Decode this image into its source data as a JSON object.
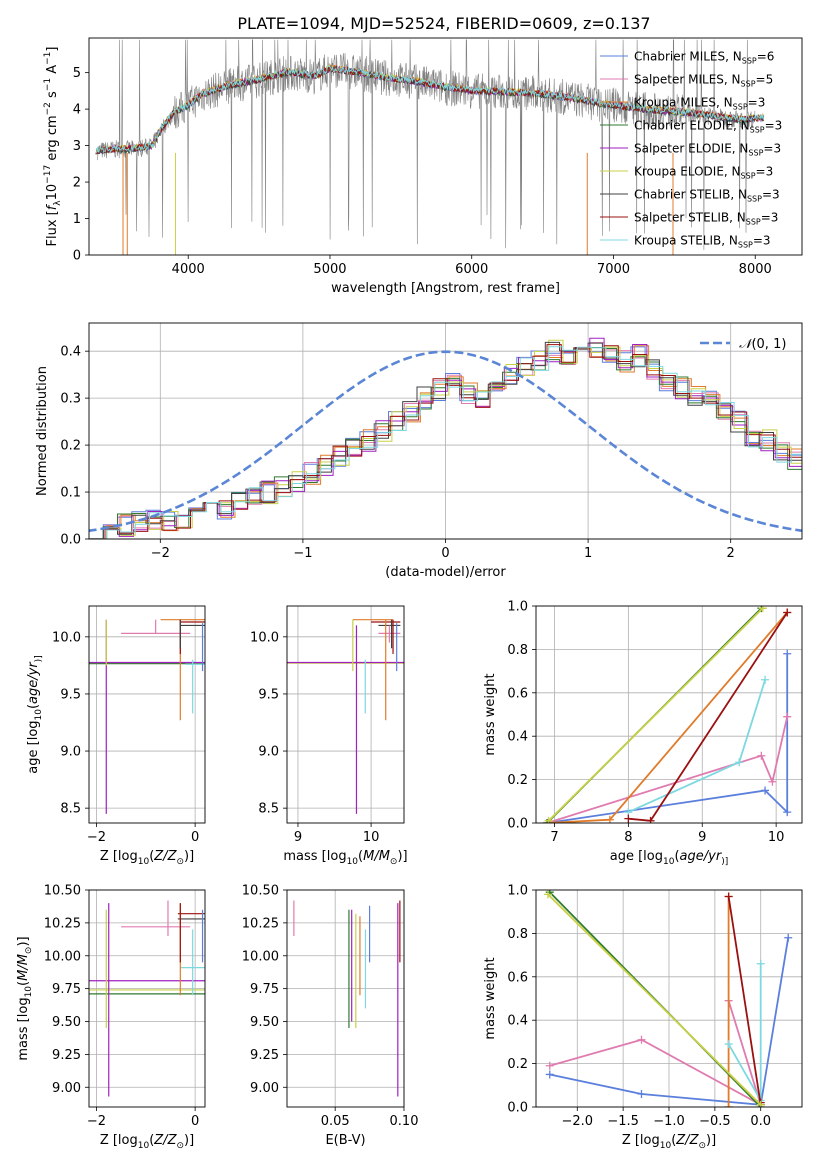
{
  "figure": {
    "title": "PLATE=1094, MJD=52524, FIBERID=0609, z=0.137"
  },
  "colors": {
    "chabrier_miles": "#5b7fdc",
    "salpeter_miles": "#e07bb0",
    "kroupa_miles": "#e07b2a",
    "chabrier_elodie": "#2f7a2f",
    "salpeter_elodie": "#a020c0",
    "kroupa_elodie": "#c8d048",
    "chabrier_stelib": "#404040",
    "salpeter_stelib": "#9b1010",
    "kroupa_stelib": "#7ed8e0",
    "data_gray": "#7f7f7f",
    "gauss": "#5b86d6",
    "grid": "#b0b0b0"
  },
  "chart_data": [
    {
      "id": "spectrum",
      "type": "line",
      "title": "",
      "xlabel": "wavelength [Angstrom, rest frame]",
      "ylabel_parts": [
        "Flux [",
        "f",
        "λ",
        "10",
        "−17",
        " erg cm",
        "−2",
        " s",
        "−1",
        " A",
        "−1",
        "]"
      ],
      "xlim": [
        3300,
        8330
      ],
      "ylim": [
        0,
        5.95
      ],
      "xticks": [
        4000,
        5000,
        6000,
        7000,
        8000
      ],
      "yticks": [
        0,
        1,
        2,
        3,
        4,
        5
      ],
      "grid": false,
      "legend_position": "upper-right",
      "legend": [
        {
          "prefix": "Chabrier MILES, N",
          "sub": "SSP",
          "suffix": "=6",
          "color_key": "chabrier_miles"
        },
        {
          "prefix": "Salpeter MILES, N",
          "sub": "SSP",
          "suffix": "=5",
          "color_key": "salpeter_miles"
        },
        {
          "prefix": "Kroupa MILES, N",
          "sub": "SSP",
          "suffix": "=3",
          "color_key": "kroupa_miles"
        },
        {
          "prefix": "Chabrier ELODIE, N",
          "sub": "SSP",
          "suffix": "=3",
          "color_key": "chabrier_elodie"
        },
        {
          "prefix": "Salpeter ELODIE, N",
          "sub": "SSP",
          "suffix": "=3",
          "color_key": "salpeter_elodie"
        },
        {
          "prefix": "Kroupa ELODIE, N",
          "sub": "SSP",
          "suffix": "=3",
          "color_key": "kroupa_elodie"
        },
        {
          "prefix": "Chabrier STELIB, N",
          "sub": "SSP",
          "suffix": "=3",
          "color_key": "chabrier_stelib"
        },
        {
          "prefix": "Salpeter STELIB, N",
          "sub": "SSP",
          "suffix": "=3",
          "color_key": "salpeter_stelib"
        },
        {
          "prefix": "Kroupa STELIB, N",
          "sub": "SSP",
          "suffix": "=3",
          "color_key": "kroupa_stelib"
        }
      ],
      "model_continuum": {
        "x": [
          3350,
          3500,
          3600,
          3700,
          3750,
          3800,
          3900,
          4000,
          4100,
          4300,
          4500,
          4700,
          4900,
          5000,
          5200,
          5400,
          5600,
          5800,
          6000,
          6300,
          6500,
          6700,
          6900,
          7100,
          7300,
          7500,
          7700,
          7900,
          8050
        ],
        "y": [
          2.85,
          2.9,
          2.9,
          2.95,
          3.0,
          3.4,
          3.9,
          4.1,
          4.4,
          4.65,
          4.8,
          5.0,
          4.9,
          5.1,
          5.0,
          4.85,
          4.75,
          4.6,
          4.5,
          4.45,
          4.4,
          4.3,
          4.15,
          4.05,
          3.95,
          3.9,
          3.8,
          3.7,
          3.75
        ]
      }
    },
    {
      "id": "residuals",
      "type": "step",
      "title": "",
      "xlabel": "(data-model)/error",
      "ylabel": "Normed distribution",
      "xlim": [
        -2.5,
        2.5
      ],
      "ylim": [
        0,
        0.46
      ],
      "xticks": [
        -2,
        -1,
        0,
        1,
        2
      ],
      "xtick_labels": [
        "−2",
        "−1",
        "0",
        "1",
        "2"
      ],
      "yticks": [
        0.0,
        0.1,
        0.2,
        0.3,
        0.4
      ],
      "ytick_labels": [
        "0.0",
        "0.1",
        "0.2",
        "0.3",
        "0.4"
      ],
      "grid": true,
      "legend_position": "upper-right",
      "gauss_label_parts": [
        "𝒩",
        "(0, 1)"
      ],
      "bin_edges_start": -2.5,
      "bin_width": 0.1,
      "base_hist": [
        0.025,
        0.02,
        0.03,
        0.035,
        0.04,
        0.04,
        0.045,
        0.05,
        0.06,
        0.06,
        0.075,
        0.085,
        0.1,
        0.11,
        0.125,
        0.14,
        0.16,
        0.175,
        0.19,
        0.21,
        0.23,
        0.25,
        0.27,
        0.3,
        0.32,
        0.335,
        0.31,
        0.3,
        0.32,
        0.35,
        0.37,
        0.38,
        0.4,
        0.39,
        0.4,
        0.41,
        0.39,
        0.38,
        0.39,
        0.36,
        0.33,
        0.32,
        0.3,
        0.3,
        0.28,
        0.25,
        0.22,
        0.21,
        0.18,
        0.17,
        0.16,
        0.15,
        0.14,
        0.12,
        0.12,
        0.1,
        0.09,
        0.07,
        0.055,
        0.05,
        0.05,
        0.045,
        0.04,
        0.045,
        0.05,
        0.045,
        0.04,
        0.045,
        0.04,
        0.04
      ],
      "gauss_mean": 0,
      "gauss_sigma": 1
    },
    {
      "id": "age_vs_z",
      "type": "errorbar",
      "xlabel_parts": [
        "Z [log",
        "10",
        "(",
        "Z/Z",
        "⊙",
        ")]"
      ],
      "ylabel_parts": [
        "age  [log",
        "10",
        "(",
        "age/yr",
        ")]"
      ],
      "xlim": [
        -2.15,
        0.2
      ],
      "ylim": [
        8.37,
        10.27
      ],
      "xticks": [
        -2,
        0
      ],
      "xtick_labels": [
        "−2",
        "0"
      ],
      "yticks": [
        8.5,
        9.0,
        9.5,
        10.0
      ],
      "ytick_labels": [
        "8.5",
        "9.0",
        "9.5",
        "10.0"
      ],
      "grid": true,
      "vlines": [
        {
          "x": -1.8,
          "y1": 8.45,
          "y2": 10.15,
          "color_key": "salpeter_elodie"
        },
        {
          "x": -1.8,
          "y1": 9.75,
          "y2": 10.15,
          "color_key": "kroupa_elodie"
        },
        {
          "x": -0.3,
          "y1": 9.27,
          "y2": 10.15,
          "color_key": "kroupa_miles"
        },
        {
          "x": -0.3,
          "y1": 9.85,
          "y2": 10.15,
          "color_key": "salpeter_stelib"
        },
        {
          "x": -0.3,
          "y1": 9.9,
          "y2": 10.15,
          "color_key": "chabrier_stelib"
        },
        {
          "x": -0.05,
          "y1": 9.33,
          "y2": 9.8,
          "color_key": "kroupa_stelib"
        },
        {
          "x": 0.15,
          "y1": 9.7,
          "y2": 10.12,
          "color_key": "chabrier_miles"
        },
        {
          "x": -0.8,
          "y1": 10.03,
          "y2": 10.15,
          "color_key": "salpeter_miles"
        }
      ],
      "hlines": [
        {
          "y": 9.77,
          "x1": -2.15,
          "x2": 0.3,
          "color_key": "kroupa_elodie"
        },
        {
          "y": 9.765,
          "x1": -2.15,
          "x2": 0.3,
          "color_key": "chabrier_elodie"
        },
        {
          "y": 9.775,
          "x1": -2.15,
          "x2": 0.3,
          "color_key": "salpeter_elodie"
        },
        {
          "y": 10.15,
          "x1": -0.7,
          "x2": 0.2,
          "color_key": "kroupa_miles"
        },
        {
          "y": 10.13,
          "x1": -0.3,
          "x2": 0.2,
          "color_key": "salpeter_stelib"
        },
        {
          "y": 10.1,
          "x1": -0.3,
          "x2": 0.2,
          "color_key": "chabrier_stelib"
        },
        {
          "y": 10.03,
          "x1": -1.5,
          "x2": -0.1,
          "color_key": "salpeter_miles"
        },
        {
          "y": 9.76,
          "x1": -0.2,
          "x2": 0.2,
          "color_key": "kroupa_stelib"
        }
      ]
    },
    {
      "id": "age_vs_mass",
      "type": "errorbar",
      "xlabel_parts": [
        "mass [log",
        "10",
        "(",
        "M/M",
        "⊙",
        ")]"
      ],
      "xlim": [
        8.85,
        10.45
      ],
      "ylim": [
        8.37,
        10.27
      ],
      "xticks": [
        9,
        10
      ],
      "xtick_labels": [
        "9",
        "10"
      ],
      "yticks": [
        8.5,
        9.0,
        9.5,
        10.0
      ],
      "ytick_labels": [
        "8.5",
        "9.0",
        "9.5",
        "10.0"
      ],
      "grid": true,
      "vlines": [
        {
          "x": 9.8,
          "y1": 8.45,
          "y2": 10.1,
          "color_key": "salpeter_elodie"
        },
        {
          "x": 9.75,
          "y1": 9.7,
          "y2": 10.15,
          "color_key": "kroupa_elodie"
        },
        {
          "x": 10.2,
          "y1": 9.27,
          "y2": 10.15,
          "color_key": "kroupa_miles"
        },
        {
          "x": 10.3,
          "y1": 9.85,
          "y2": 10.15,
          "color_key": "salpeter_stelib"
        },
        {
          "x": 10.28,
          "y1": 9.9,
          "y2": 10.15,
          "color_key": "chabrier_stelib"
        },
        {
          "x": 9.92,
          "y1": 9.33,
          "y2": 9.8,
          "color_key": "kroupa_stelib"
        },
        {
          "x": 10.35,
          "y1": 9.7,
          "y2": 10.12,
          "color_key": "chabrier_miles"
        },
        {
          "x": 10.25,
          "y1": 9.95,
          "y2": 10.1,
          "color_key": "salpeter_miles"
        }
      ],
      "hlines": [
        {
          "y": 9.77,
          "x1": 8.85,
          "x2": 10.45,
          "color_key": "kroupa_elodie"
        },
        {
          "y": 9.775,
          "x1": 8.85,
          "x2": 10.45,
          "color_key": "salpeter_elodie"
        },
        {
          "y": 10.15,
          "x1": 9.75,
          "x2": 10.3,
          "color_key": "kroupa_miles"
        },
        {
          "y": 10.13,
          "x1": 10.0,
          "x2": 10.4,
          "color_key": "salpeter_stelib"
        },
        {
          "y": 10.1,
          "x1": 10.1,
          "x2": 10.4,
          "color_key": "chabrier_stelib"
        },
        {
          "y": 10.03,
          "x1": 10.1,
          "x2": 10.4,
          "color_key": "salpeter_miles"
        }
      ]
    },
    {
      "id": "massweight_vs_age",
      "type": "line",
      "xlabel_parts": [
        "age  [log",
        "10",
        "(",
        "age/yr",
        ")]"
      ],
      "ylabel": "mass weight",
      "xlim": [
        6.75,
        10.35
      ],
      "ylim": [
        0,
        1.0
      ],
      "xticks": [
        7,
        8,
        9,
        10
      ],
      "xtick_labels": [
        "7",
        "8",
        "9",
        "10"
      ],
      "yticks": [
        0.0,
        0.2,
        0.4,
        0.6,
        0.8,
        1.0
      ],
      "ytick_labels": [
        "0.0",
        "0.2",
        "0.4",
        "0.6",
        "0.8",
        "1.0"
      ],
      "grid": true,
      "series": [
        {
          "color_key": "chabrier_miles",
          "x": [
            6.9,
            9.85,
            10.15,
            10.15
          ],
          "y": [
            0.0,
            0.15,
            0.05,
            0.78
          ]
        },
        {
          "color_key": "salpeter_miles",
          "x": [
            6.9,
            9.8,
            9.95,
            10.15
          ],
          "y": [
            0.0,
            0.31,
            0.19,
            0.49
          ]
        },
        {
          "color_key": "kroupa_miles",
          "x": [
            6.9,
            7.75,
            10.15
          ],
          "y": [
            0.0,
            0.015,
            0.97
          ]
        },
        {
          "color_key": "kroupa_stelib",
          "x": [
            8.0,
            9.5,
            9.85
          ],
          "y": [
            0.05,
            0.28,
            0.66
          ]
        },
        {
          "color_key": "salpeter_stelib",
          "x": [
            8.0,
            8.3,
            10.15
          ],
          "y": [
            0.02,
            0.01,
            0.97
          ]
        },
        {
          "color_key": "chabrier_elodie",
          "x": [
            6.9,
            9.8
          ],
          "y": [
            0.0,
            0.99
          ]
        },
        {
          "color_key": "kroupa_elodie",
          "x": [
            6.92,
            9.82
          ],
          "y": [
            0.01,
            0.99
          ]
        }
      ]
    },
    {
      "id": "mass_vs_z",
      "type": "errorbar",
      "xlabel_parts": [
        "Z [log",
        "10",
        "(",
        "Z/Z",
        "⊙",
        ")]"
      ],
      "ylabel_parts": [
        "mass [log",
        "10",
        "(",
        "M/M",
        "⊙",
        ")]"
      ],
      "xlim": [
        -2.15,
        0.2
      ],
      "ylim": [
        8.85,
        10.5
      ],
      "xticks": [
        -2,
        0
      ],
      "xtick_labels": [
        "−2",
        "0"
      ],
      "yticks": [
        9.0,
        9.25,
        9.5,
        9.75,
        10.0,
        10.25,
        10.5
      ],
      "ytick_labels": [
        "9.00",
        "9.25",
        "9.50",
        "9.75",
        "10.00",
        "10.25",
        "10.50"
      ],
      "grid": true,
      "vlines": [
        {
          "x": -1.75,
          "y1": 8.93,
          "y2": 10.4,
          "color_key": "salpeter_elodie"
        },
        {
          "x": -1.8,
          "y1": 9.45,
          "y2": 10.35,
          "color_key": "kroupa_elodie"
        },
        {
          "x": -0.3,
          "y1": 9.7,
          "y2": 10.4,
          "color_key": "kroupa_miles"
        },
        {
          "x": -0.3,
          "y1": 9.95,
          "y2": 10.4,
          "color_key": "salpeter_stelib"
        },
        {
          "x": -0.55,
          "y1": 10.15,
          "y2": 10.42,
          "color_key": "salpeter_miles"
        },
        {
          "x": 0.15,
          "y1": 9.95,
          "y2": 10.35,
          "color_key": "chabrier_miles"
        },
        {
          "x": -0.05,
          "y1": 9.7,
          "y2": 10.2,
          "color_key": "kroupa_stelib"
        }
      ],
      "hlines": [
        {
          "y": 9.81,
          "x1": -2.15,
          "x2": 0.3,
          "color_key": "salpeter_elodie"
        },
        {
          "y": 9.74,
          "x1": -2.15,
          "x2": 0.3,
          "color_key": "kroupa_elodie"
        },
        {
          "y": 9.71,
          "x1": -2.15,
          "x2": 0.3,
          "color_key": "chabrier_elodie"
        },
        {
          "y": 10.32,
          "x1": -0.35,
          "x2": 0.2,
          "color_key": "salpeter_stelib"
        },
        {
          "y": 10.28,
          "x1": -0.35,
          "x2": 0.2,
          "color_key": "chabrier_stelib"
        },
        {
          "y": 10.22,
          "x1": -1.5,
          "x2": -0.1,
          "color_key": "salpeter_miles"
        },
        {
          "y": 9.91,
          "x1": -0.3,
          "x2": 0.2,
          "color_key": "kroupa_stelib"
        }
      ]
    },
    {
      "id": "mass_vs_ebv",
      "type": "errorbar",
      "xlabel": "E(B-V)",
      "xlim": [
        0.015,
        0.1
      ],
      "ylim": [
        8.85,
        10.5
      ],
      "xticks": [
        0.05,
        0.1
      ],
      "xtick_labels": [
        "0.05",
        "0.10"
      ],
      "yticks": [
        9.0,
        9.25,
        9.5,
        9.75,
        10.0,
        10.25,
        10.5
      ],
      "ytick_labels": [
        "9.00",
        "9.25",
        "9.50",
        "9.75",
        "10.00",
        "10.25",
        "10.50"
      ],
      "grid": true,
      "vlines": [
        {
          "x": 0.02,
          "y1": 10.15,
          "y2": 10.42,
          "color_key": "salpeter_miles"
        },
        {
          "x": 0.06,
          "y1": 9.45,
          "y2": 10.35,
          "color_key": "chabrier_elodie"
        },
        {
          "x": 0.062,
          "y1": 9.5,
          "y2": 10.35,
          "color_key": "salpeter_elodie"
        },
        {
          "x": 0.065,
          "y1": 9.45,
          "y2": 10.32,
          "color_key": "kroupa_elodie"
        },
        {
          "x": 0.068,
          "y1": 9.7,
          "y2": 10.3,
          "color_key": "kroupa_miles"
        },
        {
          "x": 0.072,
          "y1": 9.6,
          "y2": 10.2,
          "color_key": "kroupa_stelib"
        },
        {
          "x": 0.075,
          "y1": 9.95,
          "y2": 10.38,
          "color_key": "chabrier_miles"
        },
        {
          "x": 0.0955,
          "y1": 8.93,
          "y2": 10.4,
          "color_key": "salpeter_elodie"
        },
        {
          "x": 0.097,
          "y1": 9.95,
          "y2": 10.42,
          "color_key": "salpeter_stelib"
        }
      ]
    },
    {
      "id": "massweight_vs_z",
      "type": "line",
      "xlabel_parts": [
        "Z [log",
        "10",
        "(",
        "Z/Z",
        "⊙",
        ")]"
      ],
      "ylabel": "mass weight",
      "xlim": [
        -2.45,
        0.45
      ],
      "ylim": [
        0,
        1.0
      ],
      "xticks": [
        -2.0,
        -1.5,
        -1.0,
        -0.5,
        0.0
      ],
      "xtick_labels": [
        "−2.0",
        "−1.5",
        "−1.0",
        "−0.5",
        "0.0"
      ],
      "yticks": [
        0.0,
        0.2,
        0.4,
        0.6,
        0.8,
        1.0
      ],
      "ytick_labels": [
        "0.0",
        "0.2",
        "0.4",
        "0.6",
        "0.8",
        "1.0"
      ],
      "grid": true,
      "series": [
        {
          "color_key": "chabrier_miles",
          "x": [
            -2.3,
            -1.3,
            0.0,
            0.3
          ],
          "y": [
            0.15,
            0.06,
            0.01,
            0.78
          ]
        },
        {
          "color_key": "salpeter_miles",
          "x": [
            -2.3,
            -1.3,
            0.0,
            -0.35
          ],
          "y": [
            0.19,
            0.31,
            0.01,
            0.49
          ]
        },
        {
          "color_key": "kroupa_miles",
          "x": [
            -0.35,
            -0.35,
            -0.35
          ],
          "y": [
            0.0,
            0.97,
            0.0
          ]
        },
        {
          "color_key": "kroupa_stelib",
          "x": [
            -0.35,
            0.0,
            0.0
          ],
          "y": [
            0.29,
            0.03,
            0.66
          ]
        },
        {
          "color_key": "salpeter_stelib",
          "x": [
            -0.35,
            0.0,
            0.0
          ],
          "y": [
            0.97,
            0.01,
            0.02
          ]
        },
        {
          "color_key": "chabrier_elodie",
          "x": [
            -2.3,
            0.0
          ],
          "y": [
            0.99,
            0.0
          ]
        },
        {
          "color_key": "kroupa_elodie",
          "x": [
            -2.32,
            0.0
          ],
          "y": [
            0.98,
            0.01
          ]
        }
      ]
    }
  ]
}
